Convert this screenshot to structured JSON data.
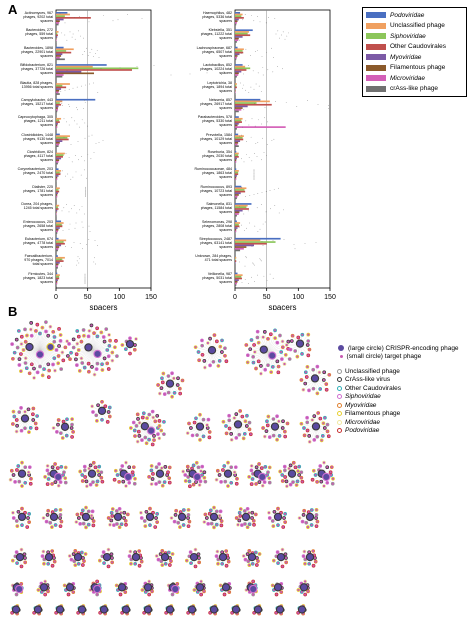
{
  "panel_labels": {
    "a": "A",
    "b": "B"
  },
  "legend_a": [
    {
      "label": "Podoviridae",
      "color": "#4a6fc1",
      "italic": true
    },
    {
      "label": "Unclassified phage",
      "color": "#f0a060",
      "italic": false
    },
    {
      "label": "Siphoviridae",
      "color": "#8cc65a",
      "italic": true
    },
    {
      "label": "Other Caudovirales",
      "color": "#c0504d",
      "italic": false
    },
    {
      "label": "Myoviridae",
      "color": "#7c5aa6",
      "italic": true
    },
    {
      "label": "Filamentous phage",
      "color": "#8b5a2b",
      "italic": false
    },
    {
      "label": "Microviridae",
      "color": "#d35fb7",
      "italic": true
    },
    {
      "label": "crAss-like phage",
      "color": "#707070",
      "italic": false
    }
  ],
  "legend_b": {
    "nodes": [
      {
        "label": "(large circle) CRISPR-encoding phage",
        "fill": "#5b4aa0"
      },
      {
        "label": "(small circle) target phage",
        "fill": "#c85ab0"
      }
    ],
    "rings": [
      {
        "label": "Unclassified phage",
        "color": "#9a9a9a",
        "italic": false
      },
      {
        "label": "CrAss-like virus",
        "color": "#3a3a3a",
        "italic": false
      },
      {
        "label": "Other Caudovirales",
        "color": "#30b0b8",
        "italic": false
      },
      {
        "label": "Siphoviridae",
        "color": "#d070d0",
        "italic": true
      },
      {
        "label": "Myoviridae",
        "color": "#e08030",
        "italic": true
      },
      {
        "label": "Filamentous phage",
        "color": "#e8d030",
        "italic": false
      },
      {
        "label": "Microviridae",
        "color": "#f0e8a0",
        "italic": true
      },
      {
        "label": "Podoviridae",
        "color": "#c83030",
        "italic": true
      }
    ]
  },
  "colors": {
    "podo": "#4a6fc1",
    "uncl": "#f0a060",
    "sipho": "#8cc65a",
    "other": "#c0504d",
    "myo": "#7c5aa6",
    "fil": "#8b5a2b",
    "micro": "#d35fb7",
    "crass": "#707070"
  },
  "chart_data": [
    {
      "type": "bar",
      "orientation": "horizontal",
      "xlabel": "spacers",
      "xlim": [
        0,
        150
      ],
      "xticks": [
        "0",
        "50",
        "100",
        "150"
      ],
      "categories": [
        "Actinomyces, 967\nphages, 9202 total\nspacers",
        "Bacteroides, 272\nphages, 559 total\nspacers",
        "Bacteroides, 1898\nphages, 22901 total\nspacers",
        "Bifidobacterium, 821\nphages, 37726 total\nspacers",
        "Blautia, 828 phages,\n13956 total spacers",
        "Campylobacter, 443\nphages, 15217 total\nspacers",
        "Capnocytophaga, 305\nphages, 1211 total\nspacers",
        "Clostridioides, 1448\nphages, 9130 total\nspacers",
        "Clostridium, 824\nphages, 4117 total\nspacers",
        "Corynebacterium, 203\nphages, 2470 total\nspacers",
        "Dialister, 225\nphages, 1781 total\nspacers",
        "Dorea, 204 phages,\n1245 total spacers",
        "Enterococcus, 203\nphages, 2658 total\nspacers",
        "Eubacterium, 674\nphages, 4778 total\nspacers",
        "Faecalibacterium,\n970 phages, 7014\ntotal spacers",
        "Firmicutes, 344\nphages, 1823 total\nspacers"
      ],
      "series": [
        {
          "name": "Podoviridae",
          "values": [
            18,
            0,
            12,
            80,
            0,
            62,
            0,
            6,
            0,
            4,
            0,
            0,
            8,
            4,
            3,
            2
          ]
        },
        {
          "name": "Unclassified phage",
          "values": [
            22,
            4,
            28,
            58,
            22,
            10,
            8,
            22,
            14,
            8,
            6,
            5,
            12,
            16,
            14,
            6
          ]
        },
        {
          "name": "Siphoviridae",
          "values": [
            14,
            2,
            16,
            130,
            10,
            6,
            5,
            18,
            12,
            6,
            4,
            3,
            9,
            12,
            10,
            5
          ]
        },
        {
          "name": "Other Caudovirales",
          "values": [
            55,
            3,
            24,
            120,
            16,
            8,
            6,
            20,
            11,
            7,
            5,
            4,
            10,
            14,
            12,
            5
          ]
        },
        {
          "name": "Myoviridae",
          "values": [
            12,
            2,
            10,
            40,
            8,
            4,
            3,
            10,
            8,
            4,
            3,
            2,
            6,
            8,
            6,
            3
          ]
        },
        {
          "name": "Filamentous phage",
          "values": [
            6,
            1,
            8,
            60,
            5,
            3,
            2,
            6,
            5,
            2,
            2,
            1,
            4,
            5,
            4,
            2
          ]
        },
        {
          "name": "Microviridae",
          "values": [
            5,
            1,
            6,
            12,
            4,
            3,
            2,
            5,
            4,
            2,
            2,
            1,
            3,
            4,
            3,
            2
          ]
        },
        {
          "name": "crAss-like phage",
          "values": [
            4,
            1,
            14,
            10,
            6,
            2,
            1,
            4,
            3,
            1,
            1,
            1,
            2,
            3,
            3,
            1
          ]
        }
      ]
    },
    {
      "type": "bar",
      "orientation": "horizontal",
      "xlabel": "spacers",
      "xlim": [
        0,
        150
      ],
      "xticks": [
        "0",
        "50",
        "100",
        "150"
      ],
      "categories": [
        "Haemophilus, 482\nphages, 5336 total\nspacers",
        "Klebsiella, 351\nphages, 11222 total\nspacers",
        "Lachnospiraceae, 687\nphages, 6507 total\nspacers",
        "Lactobacillus, 852\nphages, 10224 total\nspacers",
        "Leptotrichia, 38\nphages, 1894 total\nspacers",
        "Neisseria, 857\nphages, 26917 total\nspacers",
        "Parabacteroides, 578\nphages, 5330 total\nspacers",
        "Prevotella, 1584\nphages, 10129 total\nspacers",
        "Roseburia, 354\nphages, 2030 total\nspacers",
        "Ruminococcaceae, 484\nphages, 1863 total\nspacers",
        "Ruminococcus, 893\nphages, 10723 total\nspacers",
        "Salmonella, 831\nphages, 11584 total\nspacers",
        "Selenomonas, 298\nphages, 2808 total\nspacers",
        "Streptococcus, 2487\nphages, 63141 total\nspacers",
        "Unknown, 284 phages,\n471 total spacers",
        "Veillonella, 987\nphages, 5031 total\nspacers"
      ],
      "series": [
        {
          "name": "Podoviridae",
          "values": [
            8,
            28,
            4,
            12,
            0,
            40,
            6,
            5,
            2,
            2,
            10,
            26,
            3,
            72,
            0,
            4
          ]
        },
        {
          "name": "Unclassified phage",
          "values": [
            12,
            22,
            14,
            16,
            3,
            55,
            12,
            14,
            6,
            6,
            18,
            20,
            8,
            40,
            2,
            12
          ]
        },
        {
          "name": "Siphoviridae",
          "values": [
            10,
            20,
            12,
            24,
            2,
            34,
            10,
            12,
            5,
            5,
            15,
            18,
            6,
            64,
            1,
            10
          ]
        },
        {
          "name": "Other Caudovirales",
          "values": [
            14,
            24,
            13,
            18,
            3,
            58,
            11,
            13,
            6,
            5,
            16,
            22,
            7,
            50,
            2,
            11
          ]
        },
        {
          "name": "Myoviridae",
          "values": [
            6,
            12,
            7,
            10,
            1,
            20,
            6,
            8,
            3,
            3,
            9,
            12,
            4,
            30,
            1,
            6
          ]
        },
        {
          "name": "Filamentous phage",
          "values": [
            4,
            6,
            4,
            6,
            1,
            12,
            4,
            5,
            2,
            2,
            6,
            7,
            2,
            18,
            0,
            4
          ]
        },
        {
          "name": "Microviridae",
          "values": [
            3,
            5,
            3,
            5,
            1,
            10,
            80,
            4,
            2,
            2,
            4,
            6,
            2,
            14,
            0,
            3
          ]
        },
        {
          "name": "crAss-like phage",
          "values": [
            2,
            3,
            2,
            3,
            1,
            6,
            3,
            6,
            1,
            1,
            3,
            3,
            1,
            8,
            0,
            2
          ]
        }
      ]
    }
  ]
}
